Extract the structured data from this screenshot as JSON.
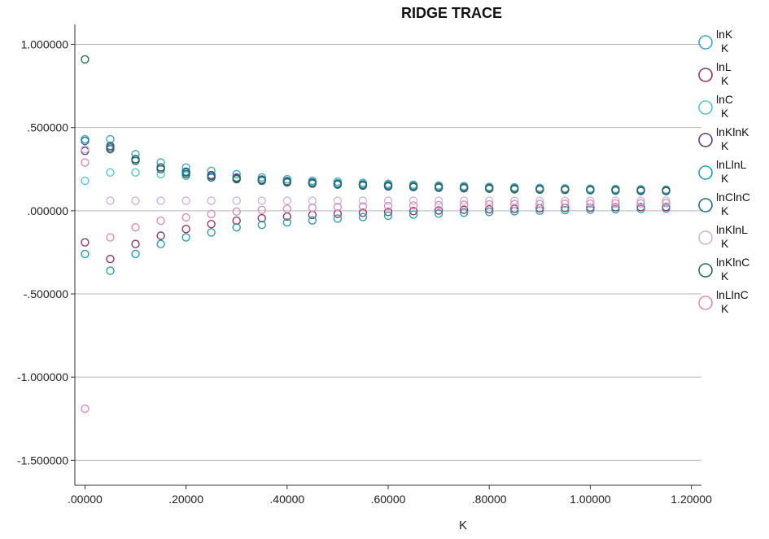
{
  "chart_data": {
    "type": "scatter",
    "title": "RIDGE TRACE",
    "xlabel": "K",
    "ylabel": "",
    "xlim": [
      -0.02,
      1.22
    ],
    "ylim": [
      -1.65,
      1.12
    ],
    "x_ticks": [
      0,
      0.2,
      0.4,
      0.6,
      0.8,
      1.0,
      1.2
    ],
    "x_tick_labels": [
      ".00000",
      ".20000",
      ".40000",
      ".60000",
      ".80000",
      "1.00000",
      "1.20000"
    ],
    "y_ticks": [
      1.0,
      0.5,
      0.0,
      -0.5,
      -1.0,
      -1.5
    ],
    "y_tick_labels": [
      "1.000000",
      ".500000",
      ".000000",
      "-.500000",
      "-1.000000",
      "-1.500000"
    ],
    "grid": "horizontal",
    "legend_position": "right",
    "x": [
      0,
      0.05,
      0.1,
      0.15,
      0.2,
      0.25,
      0.3,
      0.35,
      0.4,
      0.45,
      0.5,
      0.55,
      0.6,
      0.65,
      0.7,
      0.75,
      0.8,
      0.85,
      0.9,
      0.95,
      1.0,
      1.05,
      1.1,
      1.15
    ],
    "series": [
      {
        "name": "lnK",
        "sub": "K",
        "color": "#4aa3c6",
        "values": [
          0.43,
          0.43,
          0.34,
          0.29,
          0.26,
          0.24,
          0.22,
          0.2,
          0.19,
          0.18,
          0.175,
          0.168,
          0.162,
          0.157,
          0.152,
          0.148,
          0.144,
          0.141,
          0.138,
          0.135,
          0.133,
          0.131,
          0.129,
          0.127
        ]
      },
      {
        "name": "lnL",
        "sub": "K",
        "color": "#8b3a62",
        "values": [
          -0.19,
          -0.29,
          -0.2,
          -0.15,
          -0.11,
          -0.08,
          -0.06,
          -0.045,
          -0.035,
          -0.025,
          -0.018,
          -0.012,
          -0.007,
          -0.002,
          0.002,
          0.006,
          0.009,
          0.012,
          0.015,
          0.017,
          0.019,
          0.021,
          0.022,
          0.023
        ]
      },
      {
        "name": "lnC",
        "sub": "K",
        "color": "#56c6cc",
        "values": [
          0.18,
          0.23,
          0.23,
          0.22,
          0.21,
          0.2,
          0.19,
          0.185,
          0.178,
          0.171,
          0.165,
          0.16,
          0.155,
          0.15,
          0.146,
          0.142,
          0.139,
          0.136,
          0.133,
          0.131,
          0.129,
          0.127,
          0.125,
          0.123
        ]
      },
      {
        "name": "lnKlnK",
        "sub": "K",
        "color": "#5b3f80",
        "values": [
          0.36,
          0.38,
          0.31,
          0.26,
          0.23,
          0.21,
          0.195,
          0.185,
          0.176,
          0.168,
          0.161,
          0.156,
          0.151,
          0.147,
          0.143,
          0.14,
          0.137,
          0.134,
          0.131,
          0.129,
          0.127,
          0.125,
          0.123,
          0.122
        ]
      },
      {
        "name": "lnLlnL",
        "sub": "K",
        "color": "#2f9ea8",
        "values": [
          -0.26,
          -0.36,
          -0.26,
          -0.2,
          -0.16,
          -0.13,
          -0.1,
          -0.085,
          -0.07,
          -0.058,
          -0.047,
          -0.038,
          -0.03,
          -0.023,
          -0.017,
          -0.012,
          -0.007,
          -0.003,
          0.001,
          0.004,
          0.007,
          0.009,
          0.011,
          0.013
        ]
      },
      {
        "name": "lnClnC",
        "sub": "K",
        "color": "#1f6f8b",
        "values": [
          0.42,
          0.39,
          0.3,
          0.26,
          0.235,
          0.215,
          0.2,
          0.188,
          0.178,
          0.17,
          0.163,
          0.157,
          0.152,
          0.147,
          0.143,
          0.139,
          0.136,
          0.133,
          0.13,
          0.128,
          0.126,
          0.124,
          0.122,
          0.12
        ]
      },
      {
        "name": "lnKlnL",
        "sub": "K",
        "color": "#cdb6de",
        "values": [
          0.37,
          0.06,
          0.06,
          0.06,
          0.06,
          0.06,
          0.06,
          0.06,
          0.06,
          0.06,
          0.06,
          0.06,
          0.06,
          0.06,
          0.06,
          0.06,
          0.06,
          0.06,
          0.06,
          0.06,
          0.06,
          0.06,
          0.06,
          0.06
        ]
      },
      {
        "name": "lnKlnC",
        "sub": "K",
        "color": "#2e6b5e",
        "values": [
          0.91,
          0.37,
          0.31,
          0.25,
          0.22,
          0.2,
          0.19,
          0.18,
          0.17,
          0.163,
          0.157,
          0.151,
          0.146,
          0.142,
          0.138,
          0.135,
          0.132,
          0.129,
          0.127,
          0.125,
          0.123,
          0.121,
          0.119,
          0.118
        ]
      },
      {
        "name": "lnLlnC",
        "sub": "K",
        "color": "#d98fb8",
        "values": [
          -1.19,
          -0.16,
          -0.1,
          -0.06,
          -0.04,
          -0.02,
          -0.005,
          0.005,
          0.012,
          0.018,
          0.022,
          0.026,
          0.029,
          0.032,
          0.034,
          0.036,
          0.038,
          0.04,
          0.041,
          0.042,
          0.043,
          0.044,
          0.045,
          0.046
        ]
      }
    ],
    "extra_points": [
      {
        "series": "lnLlnC",
        "x": 0,
        "y": 0.29
      }
    ]
  }
}
